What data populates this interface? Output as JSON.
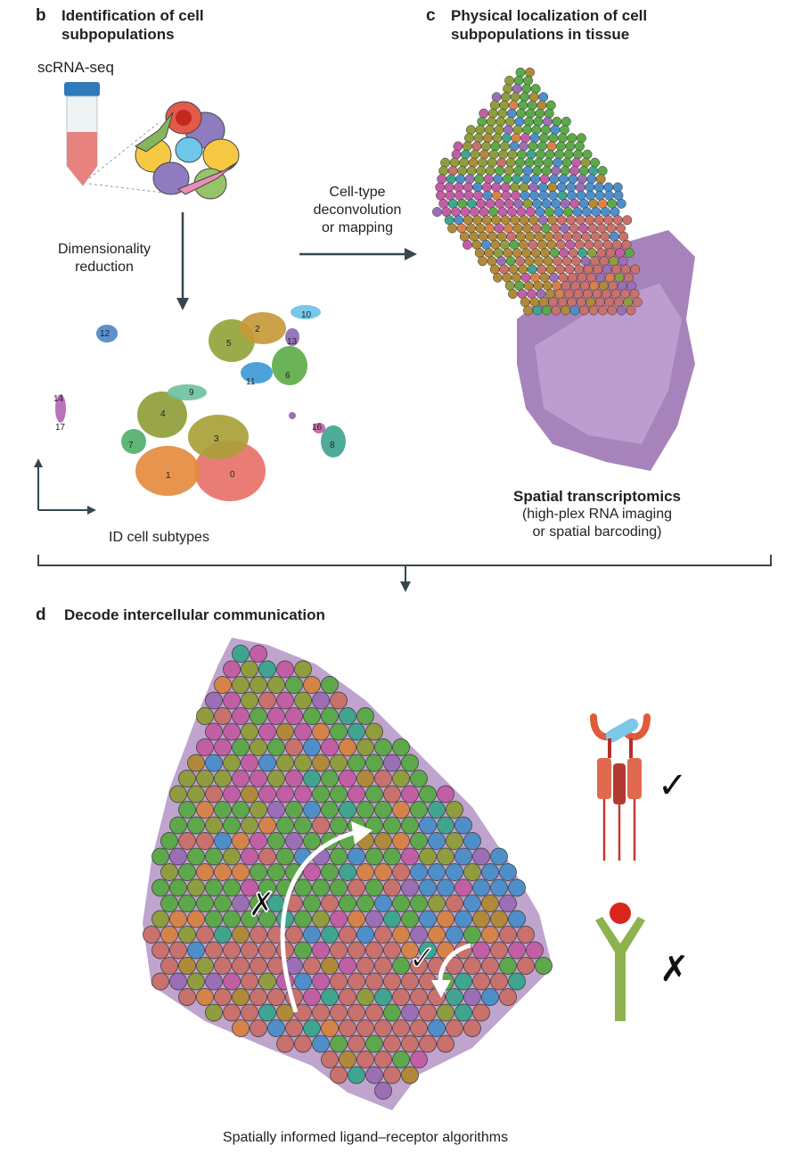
{
  "panel_b": {
    "letter": "b",
    "title_line1": "Identification of cell",
    "title_line2": "subpopulations",
    "method": "scRNA-seq",
    "step_line1": "Dimensionality",
    "step_line2": "reduction",
    "output": "ID cell subtypes",
    "cluster_labels": [
      "0",
      "1",
      "2",
      "3",
      "4",
      "5",
      "6",
      "7",
      "8",
      "9",
      "10",
      "11",
      "12",
      "13",
      "14",
      "16",
      "17"
    ]
  },
  "panel_c": {
    "letter": "c",
    "title_line1": "Physical localization of cell",
    "title_line2": "subpopulations in tissue",
    "arrow_line1": "Cell-type",
    "arrow_line2": "deconvolution",
    "arrow_line3": "or mapping",
    "caption_title": "Spatial transcriptomics",
    "caption_line1": "(high-plex RNA imaging",
    "caption_line2": "or spatial barcoding)"
  },
  "panel_d": {
    "letter": "d",
    "title": "Decode intercellular communication",
    "caption": "Spatially informed ligand–receptor algorithms",
    "check_mark": "✓",
    "cross_mark": "✗"
  },
  "colors": {
    "spot_palette": [
      "#c9716d",
      "#b08a3a",
      "#8f9d3f",
      "#5da84a",
      "#4f8fc9",
      "#9b6fb5",
      "#c25fa4",
      "#3fa58f",
      "#d6834a"
    ],
    "tissue": "#8a5aa6",
    "arrow": "#37474f"
  }
}
